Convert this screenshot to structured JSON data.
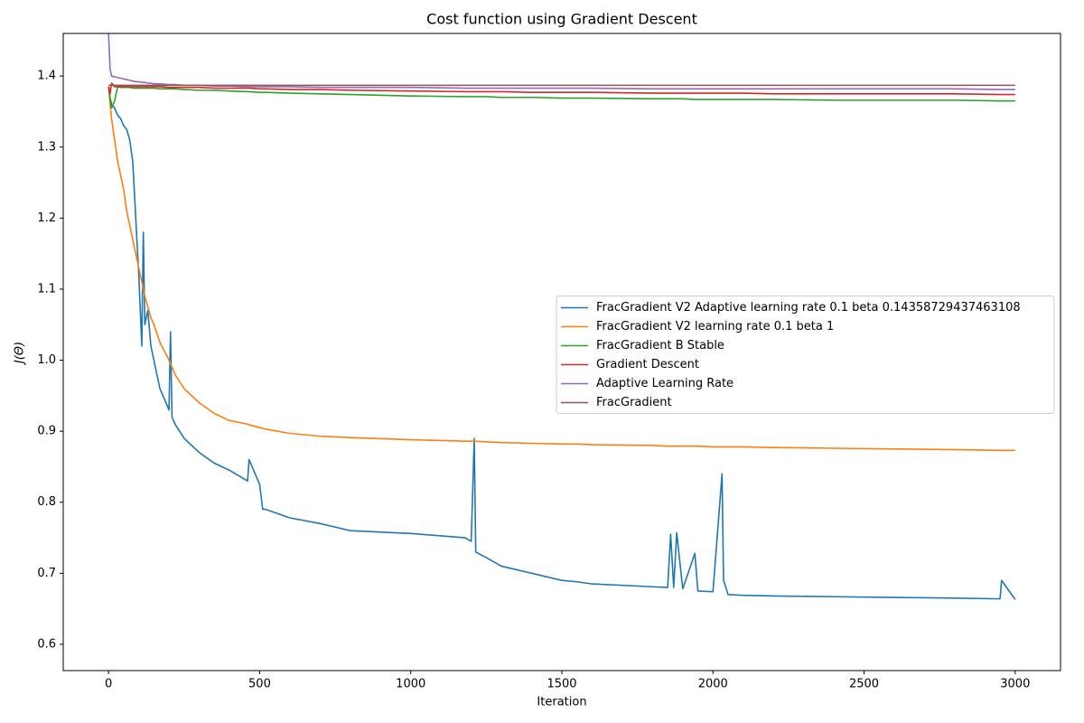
{
  "chart_data": {
    "type": "line",
    "title": "Cost function using Gradient Descent",
    "xlabel": "Iteration",
    "ylabel": "J(Θ)",
    "x": [
      0,
      5,
      10,
      20,
      30,
      40,
      50,
      60,
      70,
      80,
      90,
      100,
      110,
      115,
      120,
      130,
      140,
      150,
      170,
      200,
      205,
      210,
      220,
      250,
      300,
      350,
      400,
      460,
      465,
      500,
      510,
      520,
      600,
      700,
      800,
      1000,
      1180,
      1200,
      1210,
      1215,
      1250,
      1300,
      1400,
      1500,
      1550,
      1600,
      1800,
      1850,
      1860,
      1870,
      1880,
      1900,
      1940,
      1950,
      2000,
      2030,
      2035,
      2050,
      2100,
      2200,
      2400,
      2600,
      2800,
      2950,
      2955,
      3000
    ],
    "xlim": [
      -150,
      3150
    ],
    "xticks": [
      0,
      500,
      1000,
      1500,
      2000,
      2500,
      3000
    ],
    "ylim": [
      0.563,
      1.46
    ],
    "yticks": [
      0.6,
      0.7,
      0.8,
      0.9,
      {
        "value": 1,
        "label": "1.0"
      },
      1.1,
      1.2,
      1.3,
      1.4
    ],
    "legend": "center right",
    "series": [
      {
        "name": "FracGradient V2 Adaptive learning rate 0.1 beta 0.14358729437463108",
        "color": "#1f77b4",
        "values": [
          1.385,
          1.37,
          1.36,
          1.355,
          1.345,
          1.34,
          1.33,
          1.325,
          1.31,
          1.28,
          1.2,
          1.12,
          1.02,
          1.18,
          1.05,
          1.07,
          1.02,
          1.0,
          0.96,
          0.93,
          1.04,
          0.92,
          0.91,
          0.89,
          0.87,
          0.855,
          0.845,
          0.83,
          0.86,
          0.825,
          0.79,
          0.79,
          0.778,
          0.77,
          0.76,
          0.756,
          0.75,
          0.745,
          0.89,
          0.73,
          0.722,
          0.71,
          0.7,
          0.69,
          0.688,
          0.685,
          0.681,
          0.68,
          0.755,
          0.68,
          0.757,
          0.678,
          0.728,
          0.675,
          0.674,
          0.84,
          0.69,
          0.67,
          0.669,
          0.668,
          0.667,
          0.666,
          0.665,
          0.664,
          0.69,
          0.663
        ]
      },
      {
        "name": "FracGradient V2 learning rate 0.1 beta 1",
        "color": "#ff7f0e",
        "values": [
          1.385,
          1.36,
          1.34,
          1.31,
          1.28,
          1.26,
          1.24,
          1.21,
          1.19,
          1.17,
          1.15,
          1.13,
          1.11,
          1.1,
          1.09,
          1.075,
          1.06,
          1.05,
          1.025,
          1.0,
          0.995,
          0.99,
          0.98,
          0.96,
          0.94,
          0.925,
          0.915,
          0.91,
          0.909,
          0.905,
          0.904,
          0.903,
          0.897,
          0.893,
          0.891,
          0.888,
          0.886,
          0.886,
          0.886,
          0.886,
          0.885,
          0.884,
          0.883,
          0.882,
          0.882,
          0.881,
          0.88,
          0.879,
          0.879,
          0.879,
          0.879,
          0.879,
          0.879,
          0.879,
          0.878,
          0.878,
          0.878,
          0.878,
          0.878,
          0.877,
          0.876,
          0.875,
          0.874,
          0.873,
          0.873,
          0.873
        ]
      },
      {
        "name": "FracGradient B Stable",
        "color": "#2ca02c",
        "values": [
          1.385,
          1.37,
          1.355,
          1.365,
          1.385,
          1.384,
          1.384,
          1.384,
          1.384,
          1.383,
          1.383,
          1.383,
          1.383,
          1.383,
          1.383,
          1.383,
          1.383,
          1.383,
          1.382,
          1.382,
          1.382,
          1.382,
          1.382,
          1.381,
          1.38,
          1.38,
          1.379,
          1.378,
          1.378,
          1.377,
          1.377,
          1.377,
          1.376,
          1.375,
          1.374,
          1.372,
          1.371,
          1.371,
          1.371,
          1.371,
          1.371,
          1.37,
          1.37,
          1.369,
          1.369,
          1.369,
          1.368,
          1.368,
          1.368,
          1.368,
          1.368,
          1.368,
          1.367,
          1.367,
          1.367,
          1.367,
          1.367,
          1.367,
          1.367,
          1.367,
          1.366,
          1.366,
          1.366,
          1.365,
          1.365,
          1.365
        ]
      },
      {
        "name": "Gradient Descent",
        "color": "#d62728",
        "values": [
          1.385,
          1.375,
          1.39,
          1.385,
          1.385,
          1.385,
          1.385,
          1.385,
          1.385,
          1.385,
          1.385,
          1.385,
          1.385,
          1.385,
          1.385,
          1.385,
          1.385,
          1.385,
          1.385,
          1.384,
          1.384,
          1.384,
          1.384,
          1.384,
          1.384,
          1.383,
          1.383,
          1.383,
          1.383,
          1.382,
          1.382,
          1.382,
          1.381,
          1.381,
          1.38,
          1.379,
          1.378,
          1.378,
          1.378,
          1.378,
          1.378,
          1.378,
          1.377,
          1.377,
          1.377,
          1.377,
          1.376,
          1.376,
          1.376,
          1.376,
          1.376,
          1.376,
          1.376,
          1.376,
          1.376,
          1.376,
          1.376,
          1.376,
          1.376,
          1.375,
          1.375,
          1.375,
          1.375,
          1.374,
          1.374,
          1.374
        ]
      },
      {
        "name": "Adaptive Learning Rate",
        "color": "#9467bd",
        "values": [
          1.46,
          1.41,
          1.4,
          1.399,
          1.398,
          1.397,
          1.396,
          1.395,
          1.394,
          1.393,
          1.392,
          1.392,
          1.391,
          1.391,
          1.391,
          1.39,
          1.39,
          1.389,
          1.389,
          1.388,
          1.388,
          1.388,
          1.388,
          1.387,
          1.387,
          1.386,
          1.386,
          1.385,
          1.385,
          1.385,
          1.385,
          1.385,
          1.385,
          1.384,
          1.384,
          1.384,
          1.383,
          1.383,
          1.383,
          1.383,
          1.383,
          1.383,
          1.383,
          1.383,
          1.383,
          1.383,
          1.382,
          1.382,
          1.382,
          1.382,
          1.382,
          1.382,
          1.382,
          1.382,
          1.382,
          1.382,
          1.382,
          1.382,
          1.382,
          1.382,
          1.382,
          1.382,
          1.382,
          1.381,
          1.381,
          1.381
        ]
      },
      {
        "name": "FracGradient",
        "color": "#8c564b",
        "values": [
          1.387,
          1.387,
          1.387,
          1.387,
          1.387,
          1.387,
          1.387,
          1.387,
          1.387,
          1.387,
          1.387,
          1.387,
          1.387,
          1.387,
          1.387,
          1.387,
          1.387,
          1.387,
          1.387,
          1.387,
          1.387,
          1.387,
          1.387,
          1.387,
          1.387,
          1.387,
          1.387,
          1.387,
          1.387,
          1.387,
          1.387,
          1.387,
          1.387,
          1.387,
          1.387,
          1.387,
          1.387,
          1.387,
          1.387,
          1.387,
          1.387,
          1.387,
          1.387,
          1.387,
          1.387,
          1.387,
          1.387,
          1.387,
          1.387,
          1.387,
          1.387,
          1.387,
          1.387,
          1.387,
          1.387,
          1.387,
          1.387,
          1.387,
          1.387,
          1.387,
          1.387,
          1.387,
          1.387,
          1.387,
          1.387,
          1.387
        ]
      }
    ]
  }
}
